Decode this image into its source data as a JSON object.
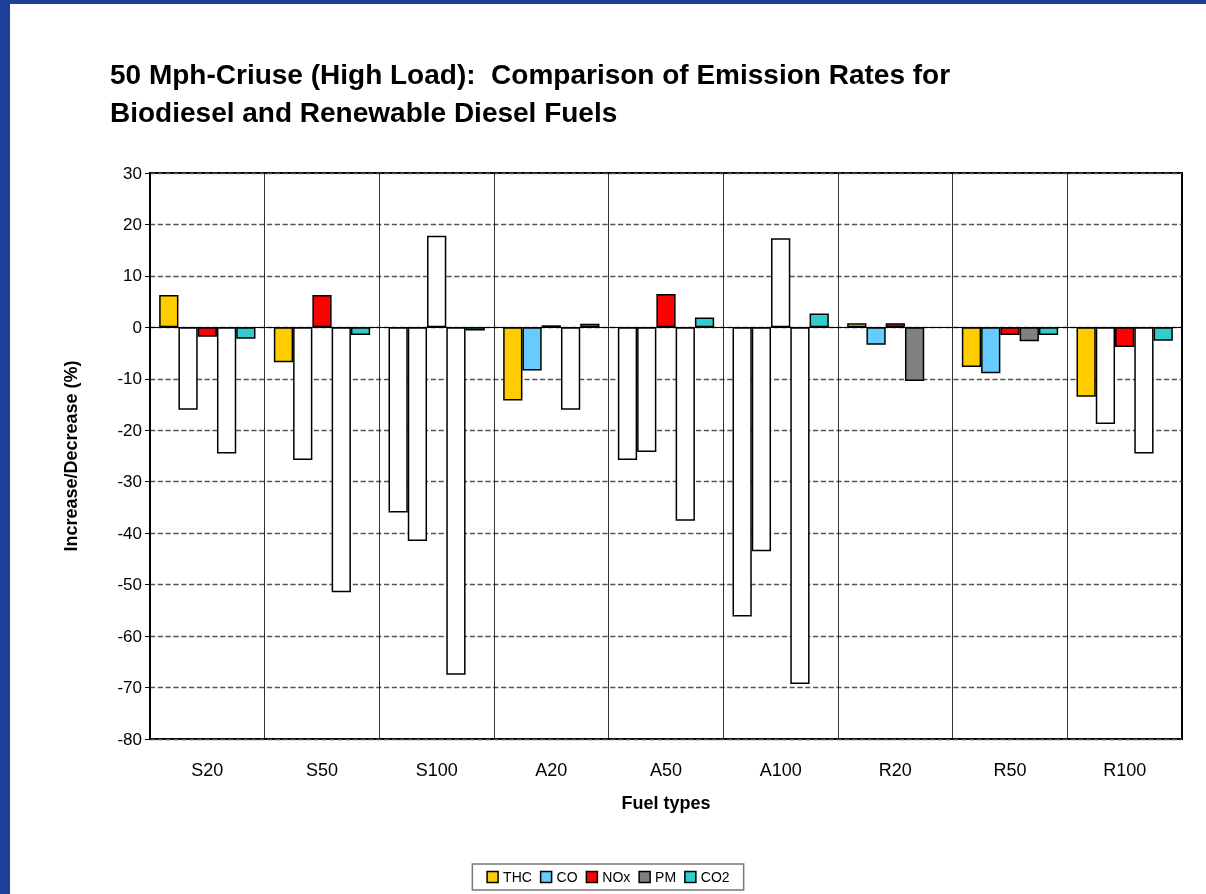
{
  "chart_data": {
    "type": "bar",
    "title": "50 Mph-Criuse (High Load):  Comparison of Emission Rates for\nBiodiesel and Renewable Diesel Fuels",
    "xlabel": "Fuel types",
    "ylabel": "Increase/Decrease (%)",
    "categories": [
      "S20",
      "S50",
      "S100",
      "A20",
      "A50",
      "A100",
      "R20",
      "R50",
      "R100"
    ],
    "series": [
      {
        "name": "THC",
        "color": "#ffcc00",
        "values": [
          6.3,
          -6.8,
          -36,
          -14.2,
          -25.8,
          -56.2,
          0.8,
          -7.7,
          -13.5
        ],
        "colors": [
          "#ffcc00",
          "#ffcc00",
          "#ffffff",
          "#ffcc00",
          "#ffffff",
          "#ffffff",
          "#ffcc00",
          "#ffcc00",
          "#ffcc00"
        ]
      },
      {
        "name": "CO",
        "color": "#66ccff",
        "values": [
          -16,
          -25.8,
          -41.5,
          -8.4,
          -24.2,
          -43.5,
          -3.4,
          -8.9,
          -18.8
        ],
        "colors": [
          "#ffffff",
          "#ffffff",
          "#ffffff",
          "#66ccff",
          "#ffffff",
          "#ffffff",
          "#66ccff",
          "#66ccff",
          "#ffffff"
        ]
      },
      {
        "name": "NOx",
        "color": "#ff0000",
        "values": [
          -1.8,
          6.3,
          17.8,
          0.4,
          6.5,
          17.3,
          0.8,
          -1.5,
          -3.8
        ],
        "colors": [
          "#ff0000",
          "#ff0000",
          "#ffffff",
          "#ffffff",
          "#ff0000",
          "#ffffff",
          "#ff0000",
          "#ff0000",
          "#ff0000"
        ]
      },
      {
        "name": "PM",
        "color": "#808080",
        "values": [
          -24.5,
          -51.5,
          -67.5,
          -16,
          -37.6,
          -69.3,
          -10.4,
          -2.7,
          -24.5
        ],
        "colors": [
          "#ffffff",
          "#ffffff",
          "#ffffff",
          "#ffffff",
          "#ffffff",
          "#ffffff",
          "#808080",
          "#808080",
          "#ffffff"
        ]
      },
      {
        "name": "CO2",
        "color": "#33cccc",
        "values": [
          -2.2,
          -1.5,
          -0.6,
          0.7,
          1.9,
          2.7,
          null,
          -1.5,
          -2.6
        ],
        "colors": [
          "#33cccc",
          "#33cccc",
          "#33cccc",
          "#33cccc",
          "#33cccc",
          "#33cccc",
          "#33cccc",
          "#33cccc",
          "#33cccc"
        ]
      }
    ],
    "ylim": [
      -80,
      30
    ],
    "yticks": [
      -80,
      -70,
      -60,
      -50,
      -40,
      -30,
      -20,
      -10,
      0,
      10,
      20,
      30
    ],
    "grid": true,
    "legend": "bottom"
  }
}
